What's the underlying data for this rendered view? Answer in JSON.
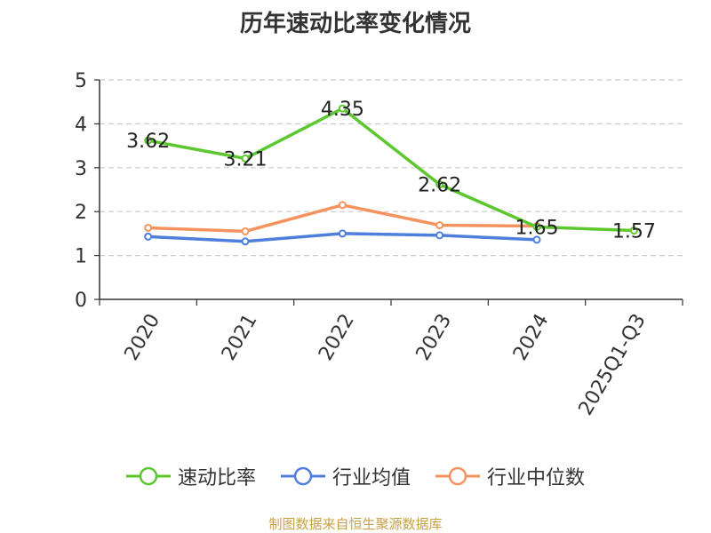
{
  "title": "历年速动比率变化情况",
  "source": "制图数据来自恒生聚源数据库",
  "chart_data": {
    "type": "line",
    "title": "历年速动比率变化情况",
    "categories": [
      "2020",
      "2021",
      "2022",
      "2023",
      "2024",
      "2025Q1-Q3"
    ],
    "ylim": [
      0,
      5
    ],
    "yticks": [
      0,
      1,
      2,
      3,
      4,
      5
    ],
    "grid": true,
    "legend_position": "bottom",
    "series": [
      {
        "name": "速动比率",
        "color": "#5cc72f",
        "values": [
          3.62,
          3.21,
          4.35,
          2.62,
          1.65,
          1.57
        ],
        "labels": [
          "3.62",
          "3.21",
          "4.35",
          "2.62",
          "1.65",
          "1.57"
        ]
      },
      {
        "name": "行业均值",
        "color": "#4f7fdc",
        "values": [
          1.43,
          1.32,
          1.5,
          1.46,
          1.36,
          null
        ]
      },
      {
        "name": "行业中位数",
        "color": "#f5935f",
        "values": [
          1.63,
          1.55,
          2.15,
          1.69,
          1.67,
          null
        ]
      }
    ]
  }
}
